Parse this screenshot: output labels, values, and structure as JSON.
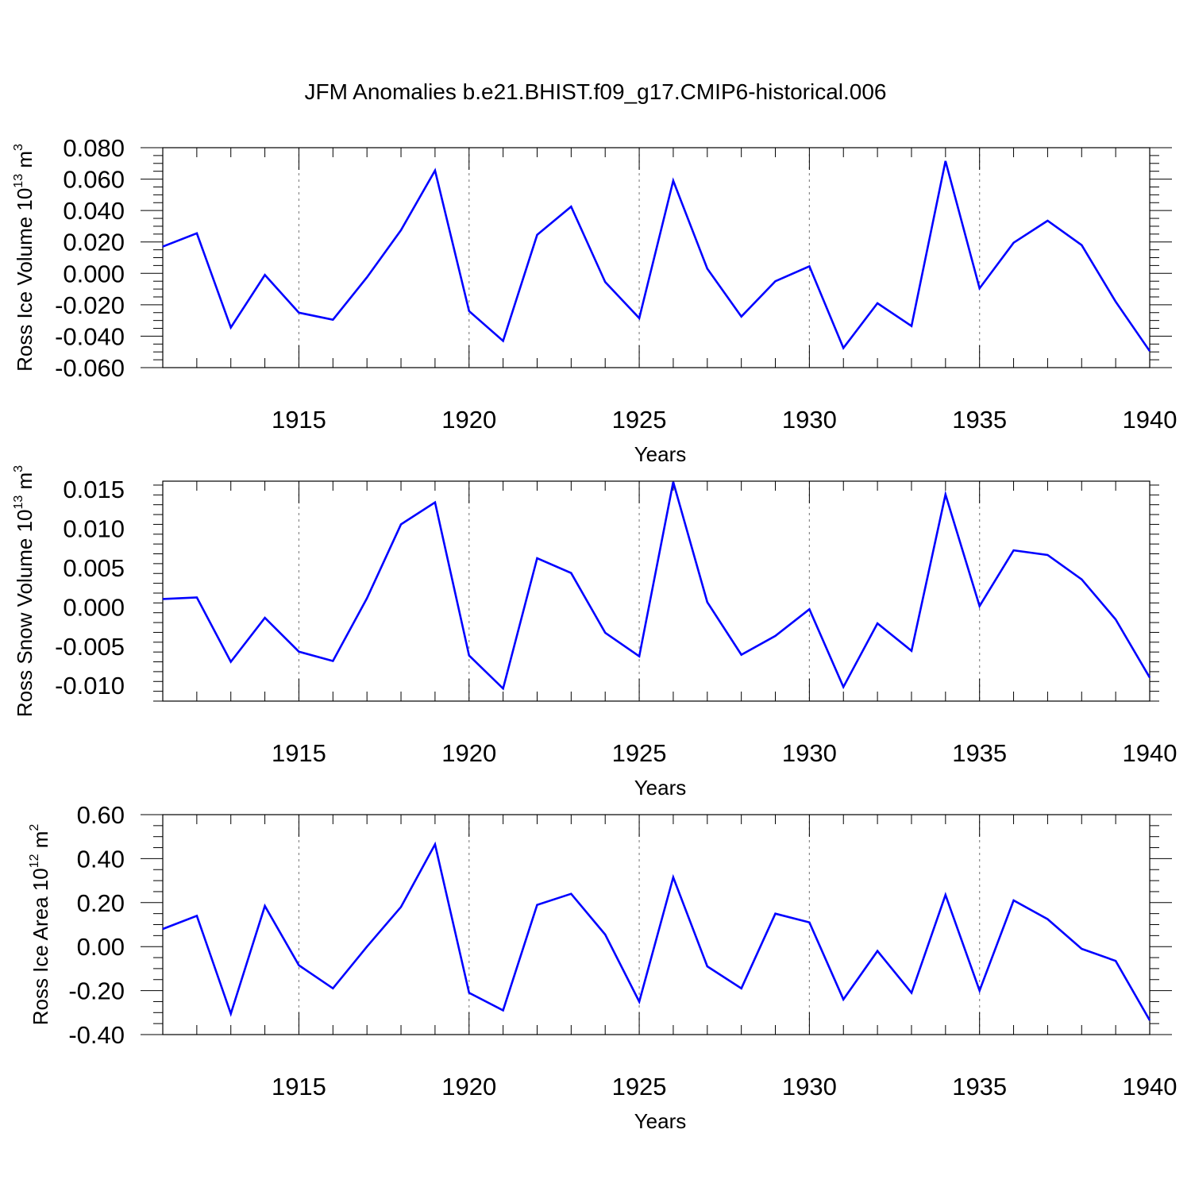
{
  "title": "JFM Anomalies b.e21.BHIST.f09_g17.CMIP6-historical.006",
  "colors": {
    "line": "#0000ff",
    "axis": "#000000",
    "grid": "#888888",
    "background": "#ffffff"
  },
  "chart_data": [
    {
      "type": "line",
      "title": "JFM Anomalies b.e21.BHIST.f09_g17.CMIP6-historical.006",
      "xlabel": "Years",
      "ylabel": {
        "main": "Ross Ice Volume 10",
        "exp": "13",
        "unit": " m",
        "unit_exp": "3"
      },
      "xlim": [
        1911,
        1940
      ],
      "ylim": [
        -0.06,
        0.08
      ],
      "x_ticks": [
        1915,
        1920,
        1925,
        1930,
        1935,
        1940
      ],
      "y_ticks": [
        "-0.060",
        "-0.040",
        "-0.020",
        "0.000",
        "0.020",
        "0.040",
        "0.060",
        "0.080"
      ],
      "y_tick_values": [
        -0.06,
        -0.04,
        -0.02,
        0.0,
        0.02,
        0.04,
        0.06,
        0.08
      ],
      "grid": "vertical dotted at major x ticks",
      "series": [
        {
          "name": "Ross Ice Volume",
          "x": [
            1911,
            1912,
            1913,
            1914,
            1915,
            1916,
            1917,
            1918,
            1919,
            1920,
            1921,
            1922,
            1923,
            1924,
            1925,
            1926,
            1927,
            1928,
            1929,
            1930,
            1931,
            1932,
            1933,
            1934,
            1935,
            1936,
            1937,
            1938,
            1939,
            1940
          ],
          "values": [
            0.017,
            0.0255,
            -0.0345,
            -0.001,
            -0.025,
            -0.0295,
            -0.0025,
            0.0275,
            0.0655,
            -0.024,
            -0.043,
            0.0245,
            0.0425,
            -0.0055,
            -0.0285,
            0.059,
            0.003,
            -0.0275,
            -0.005,
            0.0045,
            -0.0475,
            -0.019,
            -0.0335,
            0.0715,
            -0.0095,
            0.0195,
            0.0335,
            0.018,
            -0.018,
            -0.0495
          ]
        }
      ]
    },
    {
      "type": "line",
      "xlabel": "Years",
      "ylabel": {
        "main": "Ross Snow Volume 10",
        "exp": "13",
        "unit": " m",
        "unit_exp": "3"
      },
      "xlim": [
        1911,
        1940
      ],
      "ylim": [
        -0.012,
        0.016
      ],
      "x_ticks": [
        1915,
        1920,
        1925,
        1930,
        1935,
        1940
      ],
      "y_ticks": [
        "-0.010",
        "-0.005",
        "0.000",
        "0.005",
        "0.010",
        "0.015"
      ],
      "y_tick_values": [
        -0.01,
        -0.005,
        0.0,
        0.005,
        0.01,
        0.015
      ],
      "grid": "vertical dotted at major x ticks",
      "series": [
        {
          "name": "Ross Snow Volume",
          "x": [
            1911,
            1912,
            1913,
            1914,
            1915,
            1916,
            1917,
            1918,
            1919,
            1920,
            1921,
            1922,
            1923,
            1924,
            1925,
            1926,
            1927,
            1928,
            1929,
            1930,
            1931,
            1932,
            1933,
            1934,
            1935,
            1936,
            1937,
            1938,
            1939,
            1940
          ],
          "values": [
            0.001,
            0.0012,
            -0.007,
            -0.0014,
            -0.0057,
            -0.0069,
            0.0011,
            0.0105,
            0.0133,
            -0.0062,
            -0.0104,
            0.0062,
            0.0043,
            -0.0033,
            -0.0063,
            0.0159,
            0.0006,
            -0.0061,
            -0.0037,
            -0.0003,
            -0.0102,
            -0.0021,
            -0.0056,
            0.0143,
            0.0001,
            0.0072,
            0.0066,
            0.0035,
            -0.0016,
            -0.009
          ]
        }
      ]
    },
    {
      "type": "line",
      "xlabel": "Years",
      "ylabel": {
        "main": "Ross Ice Area 10",
        "exp": "12",
        "unit": " m",
        "unit_exp": "2"
      },
      "xlim": [
        1911,
        1940
      ],
      "ylim": [
        -0.4,
        0.6
      ],
      "x_ticks": [
        1915,
        1920,
        1925,
        1930,
        1935,
        1940
      ],
      "y_ticks": [
        "-0.40",
        "-0.20",
        "0.00",
        "0.20",
        "0.40",
        "0.60"
      ],
      "y_tick_values": [
        -0.4,
        -0.2,
        0.0,
        0.2,
        0.4,
        0.6
      ],
      "grid": "vertical dotted at major x ticks",
      "series": [
        {
          "name": "Ross Ice Area",
          "x": [
            1911,
            1912,
            1913,
            1914,
            1915,
            1916,
            1917,
            1918,
            1919,
            1920,
            1921,
            1922,
            1923,
            1924,
            1925,
            1926,
            1927,
            1928,
            1929,
            1930,
            1931,
            1932,
            1933,
            1934,
            1935,
            1936,
            1937,
            1938,
            1939,
            1940
          ],
          "values": [
            0.08,
            0.14,
            -0.305,
            0.185,
            -0.085,
            -0.19,
            0.0,
            0.18,
            0.465,
            -0.21,
            -0.29,
            0.19,
            0.24,
            0.055,
            -0.25,
            0.315,
            -0.09,
            -0.19,
            0.15,
            0.11,
            -0.24,
            -0.02,
            -0.21,
            0.235,
            -0.2,
            0.21,
            0.125,
            -0.01,
            -0.065,
            -0.335
          ]
        }
      ]
    }
  ]
}
